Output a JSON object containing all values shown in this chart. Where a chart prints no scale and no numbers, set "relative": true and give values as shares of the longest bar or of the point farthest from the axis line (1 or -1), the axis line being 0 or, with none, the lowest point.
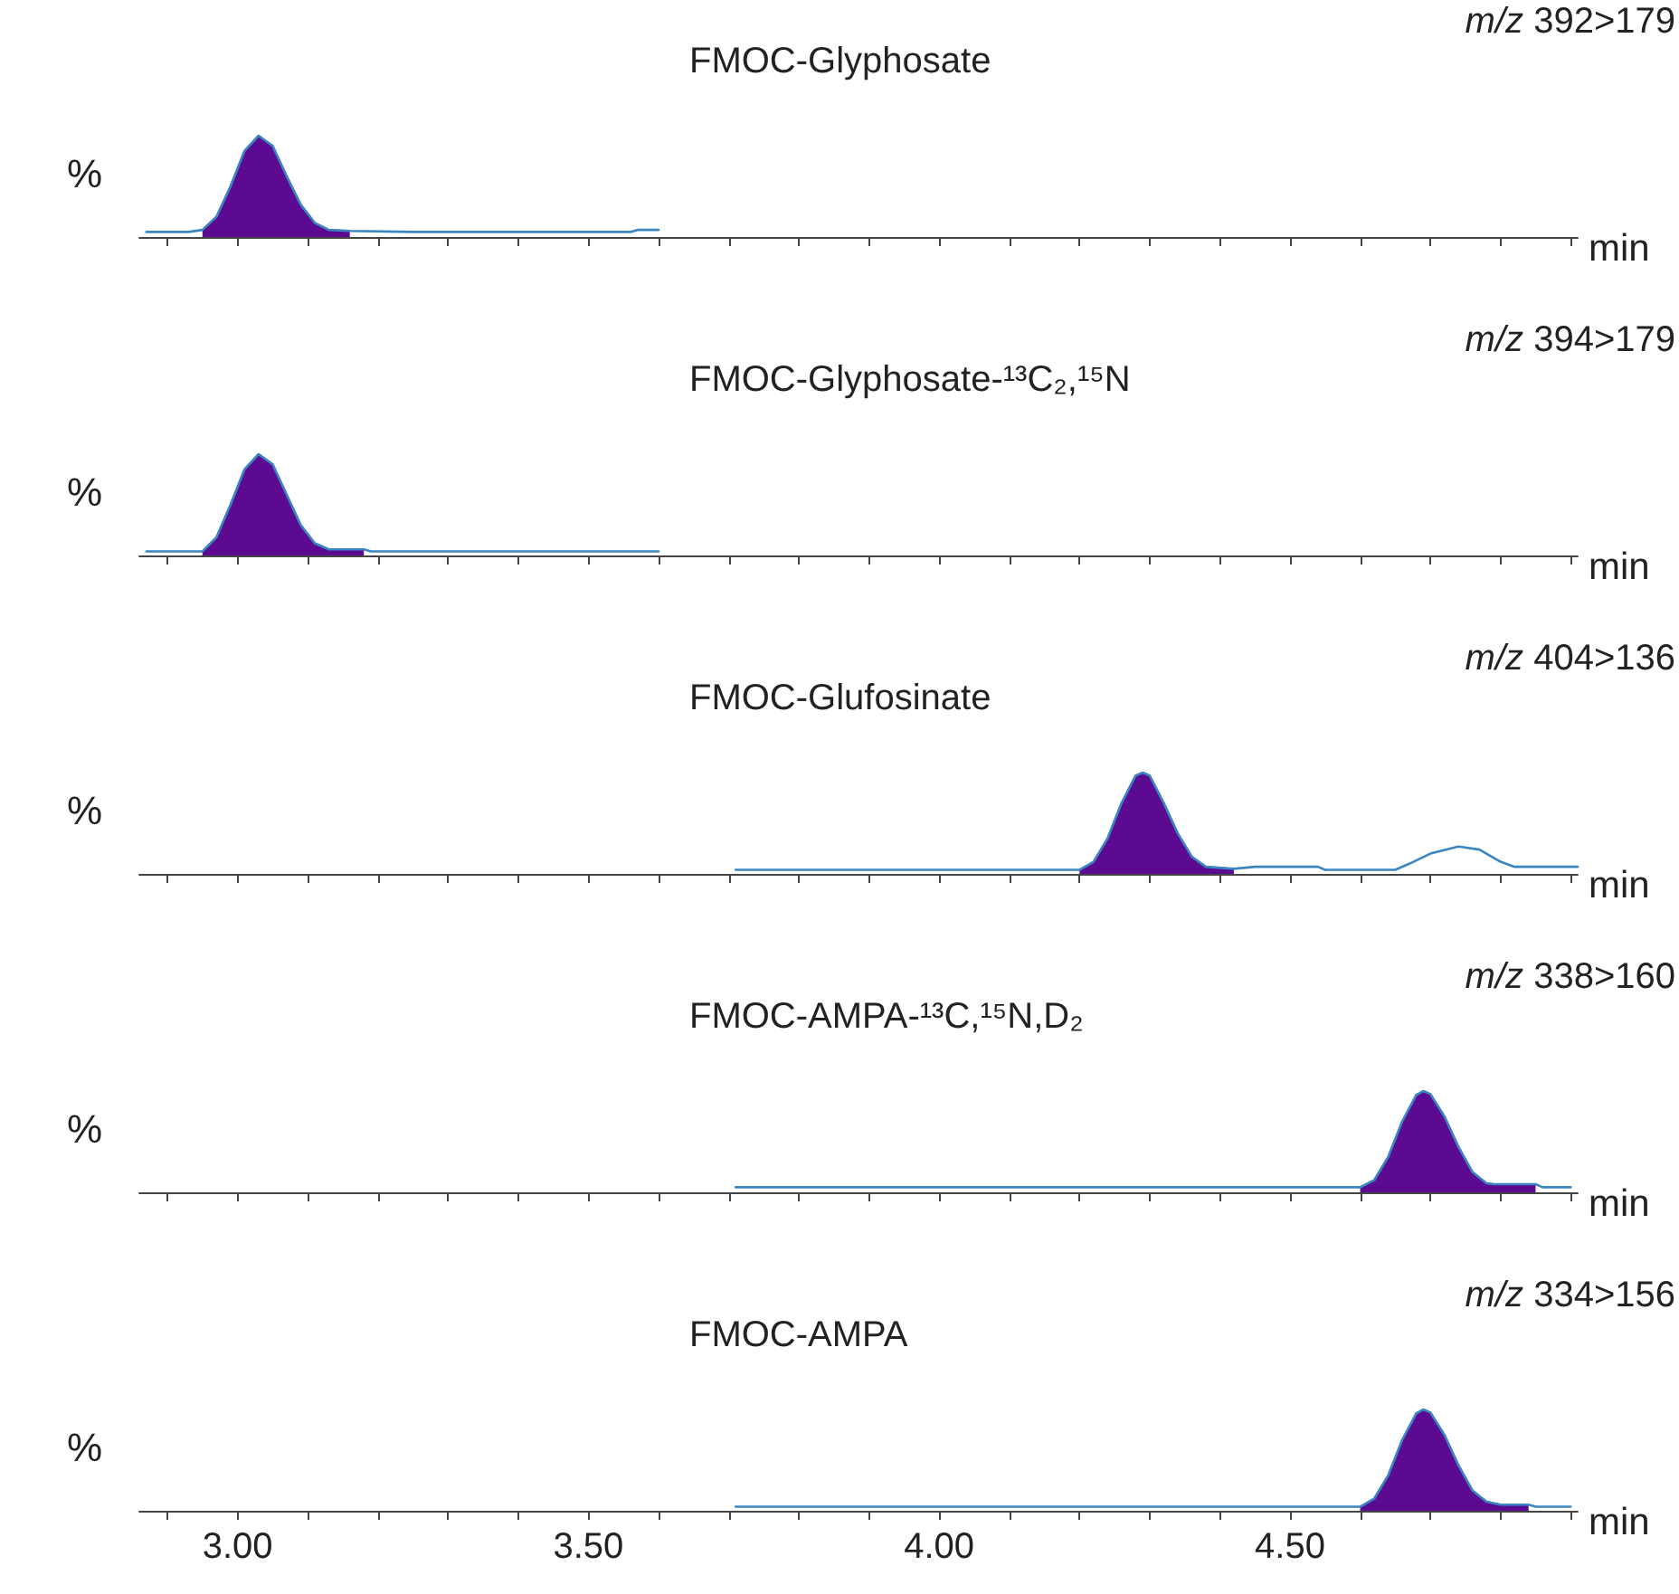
{
  "chart_data": [
    {
      "type": "line",
      "title": "FMOC-Glyphosate",
      "xlabel": "min",
      "ylabel": "%",
      "annotations": [
        "m/z 392>179"
      ],
      "relative": true,
      "xlim": [
        2.86,
        4.91
      ],
      "xticks": [
        {
          "value": 2.9,
          "label": null
        },
        {
          "value": 3,
          "label": null
        },
        {
          "value": 3.1,
          "label": null
        },
        {
          "value": 3.2,
          "label": null
        },
        {
          "value": 3.3,
          "label": null
        },
        {
          "value": 3.4,
          "label": null
        },
        {
          "value": 3.5,
          "label": null
        },
        {
          "value": 3.6,
          "label": null
        },
        {
          "value": 3.7,
          "label": null
        },
        {
          "value": 3.8,
          "label": null
        },
        {
          "value": 3.9,
          "label": null
        },
        {
          "value": 4,
          "label": null
        },
        {
          "value": 4.1,
          "label": null
        },
        {
          "value": 4.2,
          "label": null
        },
        {
          "value": 4.3,
          "label": null
        },
        {
          "value": 4.4,
          "label": null
        },
        {
          "value": 4.5,
          "label": null
        },
        {
          "value": 4.6,
          "label": null
        },
        {
          "value": 4.7,
          "label": null
        },
        {
          "value": 4.8,
          "label": null
        },
        {
          "value": 4.9,
          "label": null
        }
      ],
      "tick_labels": false,
      "grid": false,
      "marker": "none",
      "series": [
        {
          "type": "area",
          "color": "#5b0a91",
          "x": [
            2.95,
            2.97,
            2.99,
            3.01,
            3.03,
            3.05,
            3.07,
            3.09,
            3.11,
            3.13,
            3.16
          ],
          "values": [
            0.07,
            0.2,
            0.5,
            0.85,
            1.0,
            0.9,
            0.6,
            0.32,
            0.14,
            0.07,
            0.06
          ]
        },
        {
          "type": "line",
          "color": "#3a86c0",
          "x": [
            2.87,
            2.93,
            2.95,
            2.97,
            2.99,
            3.01,
            3.03,
            3.05,
            3.07,
            3.09,
            3.11,
            3.13,
            3.16,
            3.25,
            3.56,
            3.57,
            3.6
          ],
          "values": [
            0.05,
            0.05,
            0.07,
            0.2,
            0.5,
            0.85,
            1.0,
            0.9,
            0.6,
            0.32,
            0.14,
            0.07,
            0.06,
            0.05,
            0.05,
            0.07,
            0.07
          ]
        }
      ]
    },
    {
      "type": "line",
      "title": "FMOC-Glyphosate-¹³C₂,¹⁵N",
      "xlabel": "min",
      "ylabel": "%",
      "annotations": [
        "m/z 394>179"
      ],
      "relative": true,
      "xlim": [
        2.86,
        4.91
      ],
      "xticks": [
        {
          "value": 2.9,
          "label": null
        },
        {
          "value": 3,
          "label": null
        },
        {
          "value": 3.1,
          "label": null
        },
        {
          "value": 3.2,
          "label": null
        },
        {
          "value": 3.3,
          "label": null
        },
        {
          "value": 3.4,
          "label": null
        },
        {
          "value": 3.5,
          "label": null
        },
        {
          "value": 3.6,
          "label": null
        },
        {
          "value": 3.7,
          "label": null
        },
        {
          "value": 3.8,
          "label": null
        },
        {
          "value": 3.9,
          "label": null
        },
        {
          "value": 4,
          "label": null
        },
        {
          "value": 4.1,
          "label": null
        },
        {
          "value": 4.2,
          "label": null
        },
        {
          "value": 4.3,
          "label": null
        },
        {
          "value": 4.4,
          "label": null
        },
        {
          "value": 4.5,
          "label": null
        },
        {
          "value": 4.6,
          "label": null
        },
        {
          "value": 4.7,
          "label": null
        },
        {
          "value": 4.8,
          "label": null
        },
        {
          "value": 4.9,
          "label": null
        }
      ],
      "tick_labels": false,
      "grid": false,
      "marker": "none",
      "series": [
        {
          "type": "area",
          "color": "#5b0a91",
          "x": [
            2.95,
            2.97,
            2.99,
            3.01,
            3.03,
            3.05,
            3.07,
            3.09,
            3.11,
            3.13,
            3.18
          ],
          "values": [
            0.04,
            0.18,
            0.5,
            0.85,
            1.0,
            0.9,
            0.6,
            0.3,
            0.12,
            0.06,
            0.06
          ]
        },
        {
          "type": "line",
          "color": "#3a86c0",
          "x": [
            2.87,
            2.95,
            2.97,
            2.99,
            3.01,
            3.03,
            3.05,
            3.07,
            3.09,
            3.11,
            3.13,
            3.18,
            3.19,
            3.6
          ],
          "values": [
            0.04,
            0.04,
            0.18,
            0.5,
            0.85,
            1.0,
            0.9,
            0.6,
            0.3,
            0.12,
            0.06,
            0.06,
            0.04,
            0.04
          ]
        }
      ]
    },
    {
      "type": "line",
      "title": "FMOC-Glufosinate",
      "xlabel": "min",
      "ylabel": "%",
      "annotations": [
        "m/z 404>136"
      ],
      "relative": true,
      "xlim": [
        2.86,
        4.91
      ],
      "xticks": [
        {
          "value": 2.9,
          "label": null
        },
        {
          "value": 3,
          "label": null
        },
        {
          "value": 3.1,
          "label": null
        },
        {
          "value": 3.2,
          "label": null
        },
        {
          "value": 3.3,
          "label": null
        },
        {
          "value": 3.4,
          "label": null
        },
        {
          "value": 3.5,
          "label": null
        },
        {
          "value": 3.6,
          "label": null
        },
        {
          "value": 3.7,
          "label": null
        },
        {
          "value": 3.8,
          "label": null
        },
        {
          "value": 3.9,
          "label": null
        },
        {
          "value": 4,
          "label": null
        },
        {
          "value": 4.1,
          "label": null
        },
        {
          "value": 4.2,
          "label": null
        },
        {
          "value": 4.3,
          "label": null
        },
        {
          "value": 4.4,
          "label": null
        },
        {
          "value": 4.5,
          "label": null
        },
        {
          "value": 4.6,
          "label": null
        },
        {
          "value": 4.7,
          "label": null
        },
        {
          "value": 4.8,
          "label": null
        },
        {
          "value": 4.9,
          "label": null
        }
      ],
      "tick_labels": false,
      "grid": false,
      "marker": "none",
      "series": [
        {
          "type": "area",
          "color": "#5b0a91",
          "x": [
            4.2,
            4.22,
            4.24,
            4.26,
            4.28,
            4.29,
            4.3,
            4.32,
            4.34,
            4.36,
            4.38,
            4.42
          ],
          "values": [
            0.04,
            0.12,
            0.35,
            0.7,
            0.97,
            1.0,
            0.97,
            0.7,
            0.4,
            0.17,
            0.07,
            0.05
          ]
        },
        {
          "type": "line",
          "color": "#3a86c0",
          "x": [
            3.71,
            4.2,
            4.22,
            4.24,
            4.26,
            4.28,
            4.29,
            4.3,
            4.32,
            4.34,
            4.36,
            4.38,
            4.42,
            4.45,
            4.54,
            4.55,
            4.65,
            4.67,
            4.7,
            4.74,
            4.77,
            4.8,
            4.82,
            4.91
          ],
          "values": [
            0.04,
            0.04,
            0.12,
            0.35,
            0.7,
            0.97,
            1.0,
            0.97,
            0.7,
            0.4,
            0.17,
            0.07,
            0.05,
            0.07,
            0.07,
            0.04,
            0.04,
            0.1,
            0.2,
            0.27,
            0.24,
            0.12,
            0.07,
            0.07
          ]
        }
      ]
    },
    {
      "type": "line",
      "title": "FMOC-AMPA-¹³C,¹⁵N,D₂",
      "xlabel": "min",
      "ylabel": "%",
      "annotations": [
        "m/z 338>160"
      ],
      "relative": true,
      "xlim": [
        2.86,
        4.91
      ],
      "xticks": [
        {
          "value": 2.9,
          "label": null
        },
        {
          "value": 3,
          "label": null
        },
        {
          "value": 3.1,
          "label": null
        },
        {
          "value": 3.2,
          "label": null
        },
        {
          "value": 3.3,
          "label": null
        },
        {
          "value": 3.4,
          "label": null
        },
        {
          "value": 3.5,
          "label": null
        },
        {
          "value": 3.6,
          "label": null
        },
        {
          "value": 3.7,
          "label": null
        },
        {
          "value": 3.8,
          "label": null
        },
        {
          "value": 3.9,
          "label": null
        },
        {
          "value": 4,
          "label": null
        },
        {
          "value": 4.1,
          "label": null
        },
        {
          "value": 4.2,
          "label": null
        },
        {
          "value": 4.3,
          "label": null
        },
        {
          "value": 4.4,
          "label": null
        },
        {
          "value": 4.5,
          "label": null
        },
        {
          "value": 4.6,
          "label": null
        },
        {
          "value": 4.7,
          "label": null
        },
        {
          "value": 4.8,
          "label": null
        },
        {
          "value": 4.9,
          "label": null
        }
      ],
      "tick_labels": false,
      "grid": false,
      "marker": "none",
      "series": [
        {
          "type": "area",
          "color": "#5b0a91",
          "x": [
            4.6,
            4.62,
            4.64,
            4.66,
            4.68,
            4.69,
            4.7,
            4.72,
            4.74,
            4.76,
            4.78,
            4.79,
            4.85
          ],
          "values": [
            0.05,
            0.12,
            0.35,
            0.7,
            0.96,
            1.0,
            0.97,
            0.75,
            0.45,
            0.2,
            0.09,
            0.08,
            0.08
          ]
        },
        {
          "type": "line",
          "color": "#3a86c0",
          "x": [
            3.71,
            4.6,
            4.62,
            4.64,
            4.66,
            4.68,
            4.69,
            4.7,
            4.72,
            4.74,
            4.76,
            4.78,
            4.79,
            4.85,
            4.86,
            4.9
          ],
          "values": [
            0.05,
            0.05,
            0.12,
            0.35,
            0.7,
            0.96,
            1.0,
            0.97,
            0.75,
            0.45,
            0.2,
            0.09,
            0.08,
            0.08,
            0.05,
            0.05
          ]
        }
      ]
    },
    {
      "type": "line",
      "title": "FMOC-AMPA",
      "xlabel": "min",
      "ylabel": "%",
      "annotations": [
        "m/z 334>156"
      ],
      "relative": true,
      "xlim": [
        2.86,
        4.91
      ],
      "xticks": [
        {
          "value": 2.9,
          "label": null
        },
        {
          "value": 3,
          "label": "3.00"
        },
        {
          "value": 3.1,
          "label": null
        },
        {
          "value": 3.2,
          "label": null
        },
        {
          "value": 3.3,
          "label": null
        },
        {
          "value": 3.4,
          "label": null
        },
        {
          "value": 3.5,
          "label": "3.50"
        },
        {
          "value": 3.6,
          "label": null
        },
        {
          "value": 3.7,
          "label": null
        },
        {
          "value": 3.8,
          "label": null
        },
        {
          "value": 3.9,
          "label": null
        },
        {
          "value": 4,
          "label": "4.00"
        },
        {
          "value": 4.1,
          "label": null
        },
        {
          "value": 4.2,
          "label": null
        },
        {
          "value": 4.3,
          "label": null
        },
        {
          "value": 4.4,
          "label": null
        },
        {
          "value": 4.5,
          "label": "4.50"
        },
        {
          "value": 4.6,
          "label": null
        },
        {
          "value": 4.7,
          "label": null
        },
        {
          "value": 4.8,
          "label": null
        },
        {
          "value": 4.9,
          "label": null
        }
      ],
      "tick_labels": "x",
      "grid": false,
      "marker": "none",
      "series": [
        {
          "type": "area",
          "color": "#5b0a91",
          "x": [
            4.6,
            4.62,
            4.64,
            4.66,
            4.68,
            4.69,
            4.7,
            4.72,
            4.74,
            4.76,
            4.78,
            4.8,
            4.84
          ],
          "values": [
            0.04,
            0.12,
            0.35,
            0.7,
            0.96,
            1.0,
            0.97,
            0.75,
            0.45,
            0.2,
            0.09,
            0.06,
            0.06
          ]
        },
        {
          "type": "line",
          "color": "#3a86c0",
          "x": [
            3.71,
            4.6,
            4.62,
            4.64,
            4.66,
            4.68,
            4.69,
            4.7,
            4.72,
            4.74,
            4.76,
            4.78,
            4.8,
            4.84,
            4.85,
            4.9
          ],
          "values": [
            0.04,
            0.04,
            0.12,
            0.35,
            0.7,
            0.96,
            1.0,
            0.97,
            0.75,
            0.45,
            0.2,
            0.09,
            0.06,
            0.06,
            0.04,
            0.04
          ]
        }
      ]
    }
  ]
}
